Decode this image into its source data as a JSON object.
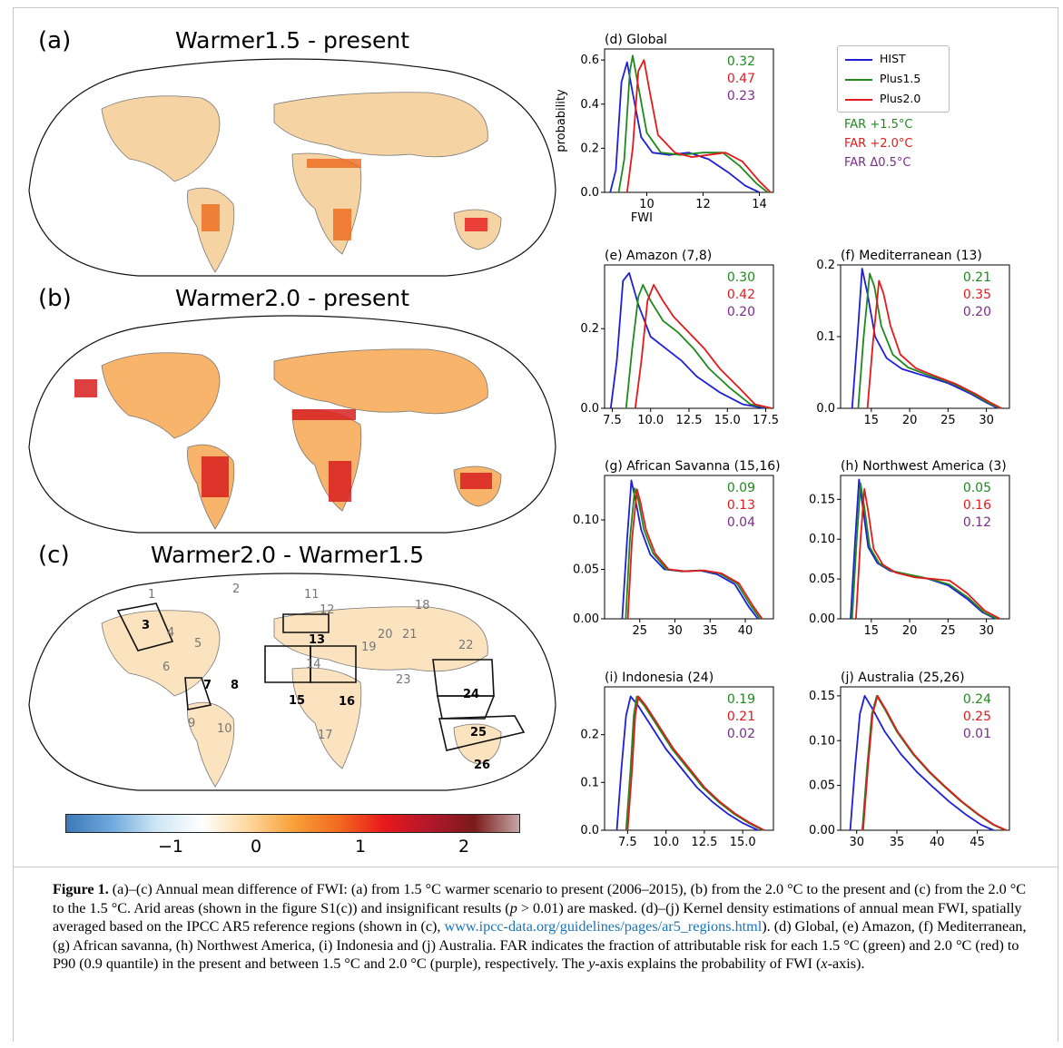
{
  "maps": [
    {
      "label": "(a)",
      "title": "Warmer1.5 - present"
    },
    {
      "label": "(b)",
      "title": "Warmer2.0 - present"
    },
    {
      "label": "(c)",
      "title": "Warmer2.0 - Warmer1.5"
    }
  ],
  "region_numbers": [
    "1",
    "2",
    "3",
    "4",
    "5",
    "6",
    "7",
    "8",
    "9",
    "10",
    "11",
    "12",
    "13",
    "14",
    "15",
    "16",
    "17",
    "18",
    "19",
    "20",
    "21",
    "22",
    "23",
    "24",
    "25",
    "26"
  ],
  "colorbar": {
    "ticks": [
      "−1",
      "0",
      "1",
      "2"
    ],
    "colors": [
      "#3a78b8",
      "#6fa8dc",
      "#cfe6f5",
      "#ffffff",
      "#fdd9a0",
      "#f7a13a",
      "#f26b1f",
      "#e8191c",
      "#b2182b",
      "#7a1a1a",
      "#c7a8a8"
    ]
  },
  "legend": {
    "entries": [
      {
        "label": "HIST",
        "color": "#1f1fd6"
      },
      {
        "label": "Plus1.5",
        "color": "#1e8a1e"
      },
      {
        "label": "Plus2.0",
        "color": "#e31a1c"
      }
    ],
    "far": [
      {
        "label": "FAR +1.5°C",
        "color": "#1e8a1e"
      },
      {
        "label": "FAR +2.0°C",
        "color": "#e31a1c"
      },
      {
        "label": "FAR Δ0.5°C",
        "color": "#7b2d8b"
      }
    ]
  },
  "chart_data": [
    {
      "type": "line",
      "title": "(d) Global",
      "xlabel": "FWI",
      "ylabel": "probability",
      "xlim": [
        8.5,
        14.5
      ],
      "ylim": [
        0,
        0.65
      ],
      "xticks": [
        "10",
        "12",
        "14"
      ],
      "yticks": [
        "0.0",
        "0.2",
        "0.4",
        "0.6"
      ],
      "far_values": [
        "0.32",
        "0.47",
        "0.23"
      ],
      "series": [
        {
          "name": "HIST",
          "x": [
            8.7,
            8.9,
            9.1,
            9.3,
            9.5,
            9.8,
            10.2,
            10.8,
            11.5,
            12.2,
            12.9,
            13.5,
            14.0
          ],
          "y": [
            0.0,
            0.1,
            0.5,
            0.59,
            0.45,
            0.25,
            0.18,
            0.17,
            0.18,
            0.15,
            0.09,
            0.03,
            0.0
          ]
        },
        {
          "name": "Plus1.5",
          "x": [
            9.0,
            9.2,
            9.4,
            9.5,
            9.7,
            10.0,
            10.5,
            11.2,
            12.0,
            12.7,
            13.3,
            13.9,
            14.3
          ],
          "y": [
            0.0,
            0.15,
            0.55,
            0.62,
            0.48,
            0.27,
            0.18,
            0.17,
            0.18,
            0.18,
            0.12,
            0.04,
            0.0
          ]
        },
        {
          "name": "Plus2.0",
          "x": [
            9.3,
            9.5,
            9.7,
            9.9,
            10.1,
            10.4,
            11.0,
            11.6,
            12.2,
            12.8,
            13.4,
            14.0,
            14.4
          ],
          "y": [
            0.0,
            0.2,
            0.55,
            0.6,
            0.46,
            0.26,
            0.18,
            0.16,
            0.17,
            0.18,
            0.14,
            0.05,
            0.0
          ]
        }
      ]
    },
    {
      "type": "line",
      "title": "(e) Amazon (7,8)",
      "xlim": [
        7,
        18
      ],
      "ylim": [
        0,
        0.36
      ],
      "xticks": [
        "7.5",
        "10.0",
        "12.5",
        "15.0",
        "17.5"
      ],
      "yticks": [
        "0.0",
        "0.2"
      ],
      "far_values": [
        "0.30",
        "0.42",
        "0.20"
      ],
      "series": [
        {
          "name": "HIST",
          "x": [
            7.4,
            7.8,
            8.2,
            8.6,
            9.2,
            10.0,
            11.0,
            12.0,
            13.0,
            14.5,
            16.0,
            17.5
          ],
          "y": [
            0.0,
            0.12,
            0.32,
            0.34,
            0.26,
            0.18,
            0.15,
            0.12,
            0.08,
            0.04,
            0.01,
            0.0
          ]
        },
        {
          "name": "Plus1.5",
          "x": [
            8.4,
            8.8,
            9.2,
            9.5,
            10.0,
            10.8,
            11.8,
            12.8,
            13.8,
            15.2,
            16.5,
            17.8
          ],
          "y": [
            0.0,
            0.15,
            0.28,
            0.31,
            0.27,
            0.22,
            0.19,
            0.15,
            0.1,
            0.05,
            0.01,
            0.0
          ]
        },
        {
          "name": "Plus2.0",
          "x": [
            9.0,
            9.4,
            9.8,
            10.2,
            10.8,
            11.5,
            12.5,
            13.5,
            14.5,
            15.8,
            16.8,
            17.9
          ],
          "y": [
            0.0,
            0.12,
            0.27,
            0.31,
            0.27,
            0.23,
            0.19,
            0.15,
            0.1,
            0.05,
            0.01,
            0.0
          ]
        }
      ]
    },
    {
      "type": "line",
      "title": "(f) Mediterranean (13)",
      "xlim": [
        11,
        33
      ],
      "ylim": [
        0,
        0.2
      ],
      "xticks": [
        "15",
        "20",
        "25",
        "30"
      ],
      "yticks": [
        "0.0",
        "0.1",
        "0.2"
      ],
      "far_values": [
        "0.21",
        "0.35",
        "0.20"
      ],
      "series": [
        {
          "name": "HIST",
          "x": [
            12.5,
            13.2,
            13.8,
            14.5,
            15.5,
            17,
            19,
            22,
            25,
            28,
            30,
            31.5
          ],
          "y": [
            0.0,
            0.1,
            0.195,
            0.16,
            0.1,
            0.07,
            0.055,
            0.045,
            0.035,
            0.02,
            0.008,
            0.0
          ]
        },
        {
          "name": "Plus1.5",
          "x": [
            13.3,
            14.0,
            14.8,
            15.4,
            16.3,
            17.8,
            19.8,
            22.5,
            25.5,
            28.3,
            30.2,
            31.8
          ],
          "y": [
            0.0,
            0.1,
            0.188,
            0.17,
            0.115,
            0.075,
            0.057,
            0.046,
            0.035,
            0.02,
            0.008,
            0.0
          ]
        },
        {
          "name": "Plus2.0",
          "x": [
            14.5,
            15.2,
            16.0,
            16.6,
            17.5,
            18.8,
            20.8,
            23.3,
            26,
            28.6,
            30.5,
            32.0
          ],
          "y": [
            0.0,
            0.09,
            0.178,
            0.16,
            0.115,
            0.075,
            0.056,
            0.045,
            0.034,
            0.02,
            0.008,
            0.0
          ]
        }
      ]
    },
    {
      "type": "line",
      "title": "(g) African Savanna (15,16)",
      "xlim": [
        20,
        44
      ],
      "ylim": [
        0,
        0.145
      ],
      "xticks": [
        "25",
        "30",
        "35",
        "40"
      ],
      "yticks": [
        "0.00",
        "0.05",
        "0.10"
      ],
      "far_values": [
        "0.09",
        "0.13",
        "0.04"
      ],
      "series": [
        {
          "name": "HIST",
          "x": [
            22.5,
            23.2,
            23.8,
            24.4,
            25.2,
            26.5,
            28.5,
            31,
            33.5,
            36,
            38.5,
            40.5,
            41.8
          ],
          "y": [
            0.0,
            0.08,
            0.14,
            0.12,
            0.09,
            0.065,
            0.05,
            0.048,
            0.049,
            0.045,
            0.035,
            0.012,
            0.0
          ]
        },
        {
          "name": "Plus1.5",
          "x": [
            23.0,
            23.6,
            24.3,
            24.8,
            25.6,
            26.9,
            28.8,
            31.3,
            33.8,
            36.3,
            38.8,
            40.8,
            42.1
          ],
          "y": [
            0.0,
            0.08,
            0.132,
            0.12,
            0.09,
            0.066,
            0.05,
            0.048,
            0.049,
            0.046,
            0.036,
            0.013,
            0.0
          ]
        },
        {
          "name": "Plus2.0",
          "x": [
            23.3,
            23.9,
            24.6,
            25.1,
            25.9,
            27.2,
            29.1,
            31.6,
            34.1,
            36.6,
            39.1,
            41.1,
            42.4
          ],
          "y": [
            0.0,
            0.08,
            0.131,
            0.118,
            0.09,
            0.066,
            0.05,
            0.048,
            0.049,
            0.046,
            0.036,
            0.013,
            0.0
          ]
        }
      ]
    },
    {
      "type": "line",
      "title": "(h) Northwest America (3)",
      "xlim": [
        11,
        33
      ],
      "ylim": [
        0,
        0.18
      ],
      "xticks": [
        "15",
        "20",
        "25",
        "30"
      ],
      "yticks": [
        "0.00",
        "0.05",
        "0.10",
        "0.15"
      ],
      "far_values": [
        "0.05",
        "0.16",
        "0.12"
      ],
      "series": [
        {
          "name": "HIST",
          "x": [
            12.3,
            12.9,
            13.4,
            13.9,
            14.6,
            15.8,
            17.5,
            20,
            22.5,
            25,
            27.5,
            29.5,
            31.2
          ],
          "y": [
            0.0,
            0.1,
            0.175,
            0.14,
            0.09,
            0.07,
            0.06,
            0.055,
            0.05,
            0.042,
            0.025,
            0.008,
            0.0
          ]
        },
        {
          "name": "Plus1.5",
          "x": [
            12.5,
            13.1,
            13.6,
            14.1,
            14.8,
            16.0,
            17.7,
            20.2,
            22.7,
            25.2,
            27.7,
            29.7,
            31.4
          ],
          "y": [
            0.0,
            0.1,
            0.17,
            0.14,
            0.09,
            0.07,
            0.06,
            0.055,
            0.05,
            0.043,
            0.026,
            0.008,
            0.0
          ]
        },
        {
          "name": "Plus2.0",
          "x": [
            13.0,
            13.6,
            14.1,
            14.6,
            15.3,
            16.5,
            18.2,
            20.7,
            23.2,
            25.2,
            27.5,
            29.8,
            31.8
          ],
          "y": [
            0.0,
            0.1,
            0.163,
            0.135,
            0.088,
            0.068,
            0.058,
            0.052,
            0.05,
            0.048,
            0.032,
            0.01,
            0.0
          ]
        }
      ]
    },
    {
      "type": "line",
      "title": "(i) Indonesia (24)",
      "xlim": [
        6,
        17
      ],
      "ylim": [
        0,
        0.3
      ],
      "xticks": [
        "7.5",
        "10.0",
        "12.5",
        "15.0"
      ],
      "yticks": [
        "0.0",
        "0.1",
        "0.2"
      ],
      "far_values": [
        "0.19",
        "0.21",
        "0.02"
      ],
      "series": [
        {
          "name": "HIST",
          "x": [
            6.8,
            7.1,
            7.4,
            7.7,
            8.2,
            9.0,
            10.0,
            11.0,
            12.0,
            13.0,
            14.0,
            15.0,
            16.0
          ],
          "y": [
            0.0,
            0.13,
            0.24,
            0.28,
            0.26,
            0.22,
            0.17,
            0.13,
            0.09,
            0.06,
            0.035,
            0.015,
            0.0
          ]
        },
        {
          "name": "Plus1.5",
          "x": [
            7.4,
            7.7,
            7.9,
            8.1,
            8.6,
            9.4,
            10.4,
            11.4,
            12.4,
            13.4,
            14.4,
            15.4,
            16.3
          ],
          "y": [
            0.0,
            0.13,
            0.24,
            0.28,
            0.26,
            0.22,
            0.17,
            0.13,
            0.09,
            0.06,
            0.035,
            0.015,
            0.0
          ]
        },
        {
          "name": "Plus2.0",
          "x": [
            7.5,
            7.8,
            8.0,
            8.2,
            8.7,
            9.5,
            10.5,
            11.5,
            12.5,
            13.5,
            14.5,
            15.5,
            16.4
          ],
          "y": [
            0.0,
            0.13,
            0.24,
            0.28,
            0.26,
            0.22,
            0.17,
            0.13,
            0.09,
            0.06,
            0.035,
            0.015,
            0.0
          ]
        }
      ]
    },
    {
      "type": "line",
      "title": "(j) Australia (25,26)",
      "xlim": [
        28,
        49
      ],
      "ylim": [
        0,
        0.16
      ],
      "xticks": [
        "30",
        "35",
        "40",
        "45"
      ],
      "yticks": [
        "0.00",
        "0.05",
        "0.10",
        "0.15"
      ],
      "far_values": [
        "0.24",
        "0.25",
        "0.01"
      ],
      "series": [
        {
          "name": "HIST",
          "x": [
            29.2,
            29.8,
            30.4,
            31.0,
            32.0,
            33.5,
            35.5,
            37.5,
            39.5,
            41.5,
            43.5,
            45.5,
            47.0
          ],
          "y": [
            0.0,
            0.07,
            0.13,
            0.15,
            0.135,
            0.11,
            0.085,
            0.065,
            0.048,
            0.032,
            0.018,
            0.006,
            0.0
          ]
        },
        {
          "name": "Plus1.5",
          "x": [
            30.7,
            31.3,
            31.9,
            32.5,
            33.5,
            35.0,
            37.0,
            39.0,
            41.0,
            43.0,
            45.0,
            47.0,
            48.5
          ],
          "y": [
            0.0,
            0.07,
            0.13,
            0.15,
            0.135,
            0.11,
            0.085,
            0.065,
            0.048,
            0.032,
            0.018,
            0.006,
            0.0
          ]
        },
        {
          "name": "Plus2.0",
          "x": [
            30.8,
            31.4,
            32.0,
            32.6,
            33.6,
            35.1,
            37.1,
            39.1,
            41.1,
            43.1,
            45.1,
            47.1,
            48.6
          ],
          "y": [
            0.0,
            0.07,
            0.13,
            0.15,
            0.135,
            0.11,
            0.085,
            0.065,
            0.048,
            0.032,
            0.018,
            0.006,
            0.0
          ]
        }
      ]
    }
  ],
  "caption": {
    "label": "Figure 1.",
    "text1": " (a)–(c) Annual mean difference of FWI: (a) from 1.5 °C warmer scenario to present (2006–2015), (b) from the 2.0 °C to the present and (c) from the 2.0 °C to the 1.5 °C. Arid areas (shown in the figure S1(c)) and insignificant results (",
    "p_symbol": "p",
    "text2": " > 0.01) are masked. (d)–(j) Kernel density estimations of annual mean FWI, spatially averaged based on the IPCC AR5 reference regions (shown in (c), ",
    "link": "www.ipcc-data.org/guidelines/pages/ar5_regions.html",
    "text3": "). (d) Global, (e) Amazon, (f) Mediterranean, (g) African savanna, (h) Northwest America, (i) Indonesia and (j) Australia. FAR indicates the fraction of attributable risk for each 1.5 °C (green) and 2.0 °C (red) to P90 (0.9 quantile) in the present and between 1.5 °C and 2.0 °C (purple), respectively. The ",
    "y_axis": "y",
    "text4": "-axis explains the probability of FWI (",
    "x_axis": "x",
    "text5": "-axis)."
  }
}
